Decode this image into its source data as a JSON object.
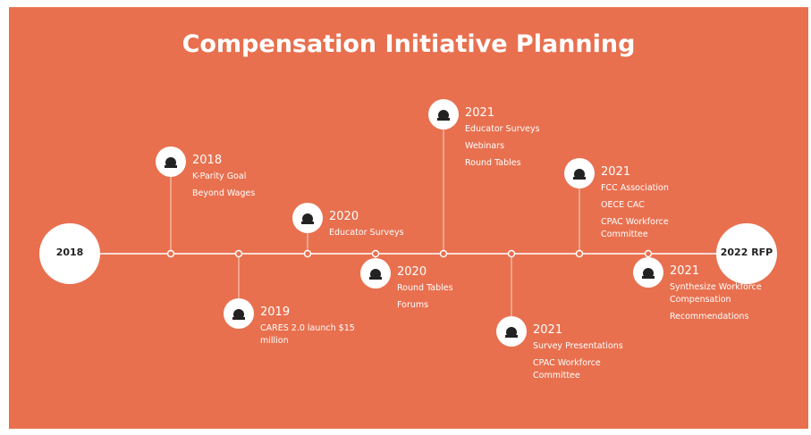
{
  "title": "Compensation Initiative Planning",
  "start": "2018",
  "end": "2022 RFP",
  "events": [
    {
      "year": "2018",
      "items": [
        "K-Parity Goal",
        "Beyond Wages"
      ]
    },
    {
      "year": "2019",
      "items": [
        "CARES 2.0  launch $15 million"
      ]
    },
    {
      "year": "2020",
      "items": [
        "Educator Surveys"
      ]
    },
    {
      "year": "2020",
      "items": [
        "Round Tables",
        "Forums"
      ]
    },
    {
      "year": "2021",
      "items": [
        "Educator Surveys",
        "Webinars",
        "Round Tables"
      ]
    },
    {
      "year": "2021",
      "items": [
        "Survey Presentations",
        "CPAC Workforce Committee"
      ]
    },
    {
      "year": "2021",
      "items": [
        "FCC Association",
        "OECE CAC",
        "CPAC Workforce Committee"
      ]
    },
    {
      "year": "2021",
      "items": [
        "Synthesize Workforce Compensation",
        "Recommendations"
      ]
    }
  ]
}
